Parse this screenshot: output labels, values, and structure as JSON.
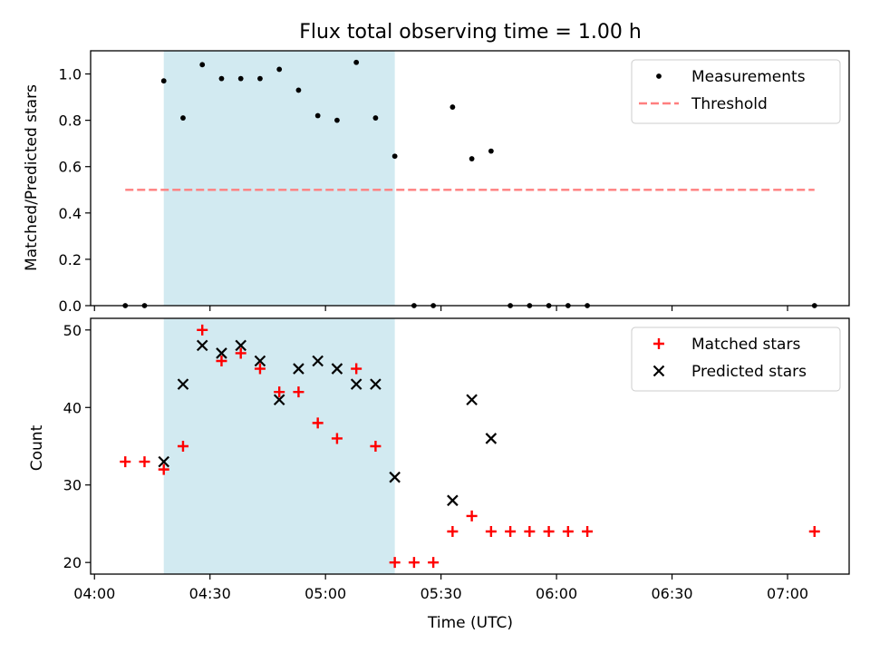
{
  "chart_data": [
    {
      "type": "scatter",
      "title": "Flux total observing time = 1.00 h",
      "xlabel": "",
      "ylabel": "Matched/Predicted stars",
      "ylim": [
        0,
        1.1
      ],
      "yticks": [
        "0.0",
        "0.2",
        "0.4",
        "0.6",
        "0.8",
        "1.0"
      ],
      "shaded_region": {
        "start": "04:18",
        "end": "05:18",
        "color": "#add8e6"
      },
      "legend_position": "top-right",
      "series": [
        {
          "name": "Measurements",
          "marker": "dot",
          "color": "#000000",
          "points": [
            [
              "04:08",
              0.0
            ],
            [
              "04:13",
              0.0
            ],
            [
              "04:18",
              0.97
            ],
            [
              "04:23",
              0.81
            ],
            [
              "04:28",
              1.04
            ],
            [
              "04:33",
              0.98
            ],
            [
              "04:38",
              0.98
            ],
            [
              "04:43",
              0.98
            ],
            [
              "04:48",
              1.02
            ],
            [
              "04:53",
              0.93
            ],
            [
              "04:58",
              0.82
            ],
            [
              "05:03",
              0.8
            ],
            [
              "05:08",
              1.05
            ],
            [
              "05:13",
              0.81
            ],
            [
              "05:18",
              0.645
            ],
            [
              "05:23",
              0.0
            ],
            [
              "05:28",
              0.0
            ],
            [
              "05:33",
              0.857
            ],
            [
              "05:38",
              0.634
            ],
            [
              "05:43",
              0.667
            ],
            [
              "05:48",
              0.0
            ],
            [
              "05:53",
              0.0
            ],
            [
              "05:58",
              0.0
            ],
            [
              "06:03",
              0.0
            ],
            [
              "06:08",
              0.0
            ],
            [
              "07:07",
              0.0
            ]
          ]
        },
        {
          "name": "Threshold",
          "marker": "dashed-line",
          "color": "#ff7f7f",
          "points": [
            [
              "04:08",
              0.5
            ],
            [
              "07:07",
              0.5
            ]
          ]
        }
      ]
    },
    {
      "type": "scatter",
      "title": "",
      "xlabel": "Time (UTC)",
      "ylabel": "Count",
      "ylim": [
        18.5,
        51.5
      ],
      "yticks": [
        "20",
        "30",
        "40",
        "50"
      ],
      "xlim": [
        "03:59",
        "07:16"
      ],
      "xticks": [
        "04:00",
        "04:30",
        "05:00",
        "05:30",
        "06:00",
        "06:30",
        "07:00"
      ],
      "shaded_region": {
        "start": "04:18",
        "end": "05:18",
        "color": "#add8e6"
      },
      "legend_position": "top-right",
      "series": [
        {
          "name": "Matched stars",
          "marker": "plus",
          "color": "#ff0000",
          "points": [
            [
              "04:08",
              33
            ],
            [
              "04:13",
              33
            ],
            [
              "04:18",
              32
            ],
            [
              "04:23",
              35
            ],
            [
              "04:28",
              50
            ],
            [
              "04:33",
              46
            ],
            [
              "04:38",
              47
            ],
            [
              "04:43",
              45
            ],
            [
              "04:48",
              42
            ],
            [
              "04:53",
              42
            ],
            [
              "04:58",
              38
            ],
            [
              "05:03",
              36
            ],
            [
              "05:08",
              45
            ],
            [
              "05:13",
              35
            ],
            [
              "05:18",
              20
            ],
            [
              "05:23",
              20
            ],
            [
              "05:28",
              20
            ],
            [
              "05:33",
              24
            ],
            [
              "05:38",
              26
            ],
            [
              "05:43",
              24
            ],
            [
              "05:48",
              24
            ],
            [
              "05:53",
              24
            ],
            [
              "05:58",
              24
            ],
            [
              "06:03",
              24
            ],
            [
              "06:08",
              24
            ],
            [
              "07:07",
              24
            ]
          ]
        },
        {
          "name": "Predicted stars",
          "marker": "x",
          "color": "#000000",
          "points": [
            [
              "04:18",
              33
            ],
            [
              "04:23",
              43
            ],
            [
              "04:28",
              48
            ],
            [
              "04:33",
              47
            ],
            [
              "04:38",
              48
            ],
            [
              "04:43",
              46
            ],
            [
              "04:48",
              41
            ],
            [
              "04:53",
              45
            ],
            [
              "04:58",
              46
            ],
            [
              "05:03",
              45
            ],
            [
              "05:08",
              43
            ],
            [
              "05:13",
              43
            ],
            [
              "05:18",
              31
            ],
            [
              "05:33",
              28
            ],
            [
              "05:38",
              41
            ],
            [
              "05:43",
              36
            ]
          ]
        }
      ]
    }
  ]
}
